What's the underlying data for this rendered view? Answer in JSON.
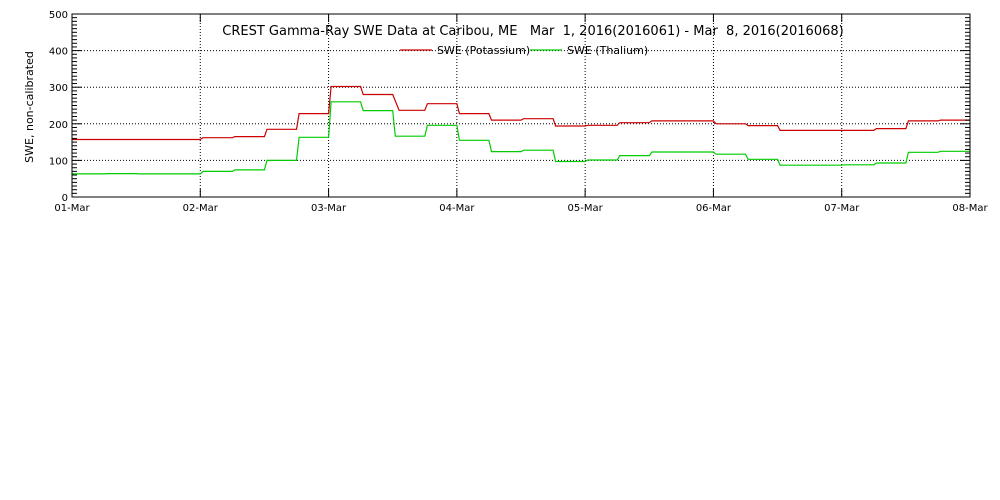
{
  "chart_data": {
    "type": "line",
    "title": "CREST Gamma-Ray SWE Data at Caribou, ME   Mar  1, 2016(2016061) - Mar  8, 2016(2016068)",
    "xlabel": "",
    "ylabel": "SWE, non-calibrated",
    "xlim": [
      0,
      7
    ],
    "ylim": [
      0,
      500
    ],
    "x_ticks": [
      {
        "value": 0,
        "label": "01-Mar"
      },
      {
        "value": 1,
        "label": "02-Mar"
      },
      {
        "value": 2,
        "label": "03-Mar"
      },
      {
        "value": 3,
        "label": "04-Mar"
      },
      {
        "value": 4,
        "label": "05-Mar"
      },
      {
        "value": 5,
        "label": "06-Mar"
      },
      {
        "value": 6,
        "label": "07-Mar"
      },
      {
        "value": 7,
        "label": "08-Mar"
      }
    ],
    "y_ticks": [
      0,
      100,
      200,
      300,
      400,
      500
    ],
    "grid": true,
    "legend_position": "top-center",
    "series": [
      {
        "name": "SWE (Potassium)",
        "color": "#cc0000",
        "points": [
          [
            0.0,
            157
          ],
          [
            1.0,
            157
          ],
          [
            1.02,
            162
          ],
          [
            1.25,
            162
          ],
          [
            1.27,
            165
          ],
          [
            1.5,
            165
          ],
          [
            1.52,
            185
          ],
          [
            1.75,
            185
          ],
          [
            1.77,
            228
          ],
          [
            2.0,
            228
          ],
          [
            2.02,
            302
          ],
          [
            2.25,
            302
          ],
          [
            2.27,
            280
          ],
          [
            2.5,
            280
          ],
          [
            2.55,
            237
          ],
          [
            2.75,
            237
          ],
          [
            2.77,
            255
          ],
          [
            3.0,
            255
          ],
          [
            3.02,
            228
          ],
          [
            3.25,
            228
          ],
          [
            3.27,
            210
          ],
          [
            3.5,
            210
          ],
          [
            3.52,
            214
          ],
          [
            3.75,
            214
          ],
          [
            3.77,
            194
          ],
          [
            4.0,
            194
          ],
          [
            4.02,
            196
          ],
          [
            4.25,
            196
          ],
          [
            4.27,
            203
          ],
          [
            4.5,
            203
          ],
          [
            4.52,
            208
          ],
          [
            5.0,
            208
          ],
          [
            5.02,
            200
          ],
          [
            5.25,
            200
          ],
          [
            5.27,
            195
          ],
          [
            5.5,
            195
          ],
          [
            5.52,
            182
          ],
          [
            6.0,
            182
          ],
          [
            6.02,
            182
          ],
          [
            6.25,
            182
          ],
          [
            6.27,
            187
          ],
          [
            6.5,
            187
          ],
          [
            6.52,
            208
          ],
          [
            6.75,
            208
          ],
          [
            6.77,
            210
          ],
          [
            7.0,
            210
          ]
        ]
      },
      {
        "name": "SWE (Thalium)",
        "color": "#00cc00",
        "points": [
          [
            0.0,
            63
          ],
          [
            0.25,
            63
          ],
          [
            0.27,
            64
          ],
          [
            0.5,
            64
          ],
          [
            0.52,
            63
          ],
          [
            1.0,
            63
          ],
          [
            1.02,
            70
          ],
          [
            1.25,
            70
          ],
          [
            1.27,
            74
          ],
          [
            1.5,
            74
          ],
          [
            1.52,
            100
          ],
          [
            1.75,
            100
          ],
          [
            1.77,
            163
          ],
          [
            2.0,
            163
          ],
          [
            2.02,
            260
          ],
          [
            2.25,
            260
          ],
          [
            2.27,
            236
          ],
          [
            2.5,
            236
          ],
          [
            2.52,
            166
          ],
          [
            2.75,
            166
          ],
          [
            2.77,
            196
          ],
          [
            3.0,
            196
          ],
          [
            3.02,
            155
          ],
          [
            3.25,
            155
          ],
          [
            3.27,
            124
          ],
          [
            3.5,
            124
          ],
          [
            3.52,
            128
          ],
          [
            3.75,
            128
          ],
          [
            3.77,
            97
          ],
          [
            4.0,
            97
          ],
          [
            4.02,
            101
          ],
          [
            4.25,
            101
          ],
          [
            4.27,
            113
          ],
          [
            4.5,
            113
          ],
          [
            4.52,
            123
          ],
          [
            5.0,
            123
          ],
          [
            5.02,
            117
          ],
          [
            5.25,
            117
          ],
          [
            5.27,
            103
          ],
          [
            5.5,
            103
          ],
          [
            5.52,
            87
          ],
          [
            6.0,
            87
          ],
          [
            6.02,
            88
          ],
          [
            6.25,
            88
          ],
          [
            6.27,
            93
          ],
          [
            6.5,
            93
          ],
          [
            6.52,
            122
          ],
          [
            6.75,
            122
          ],
          [
            6.77,
            125
          ],
          [
            7.0,
            125
          ]
        ]
      }
    ]
  }
}
